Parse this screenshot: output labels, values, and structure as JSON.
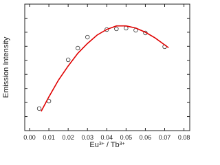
{
  "chart_data": {
    "type": "scatter",
    "ylabel": "Emission Intensity",
    "xlabel_parts": [
      "Eu",
      "3+",
      " / Tb",
      "3+"
    ],
    "xlim": [
      -0.0025,
      0.083
    ],
    "ylim": [
      0,
      9
    ],
    "xticks": [
      {
        "value": 0,
        "label": "0.00"
      },
      {
        "value": 0.01,
        "label": "0.01"
      },
      {
        "value": 0.02,
        "label": "0.02"
      },
      {
        "value": 0.03,
        "label": "0.03"
      },
      {
        "value": 0.04,
        "label": "0.04"
      },
      {
        "value": 0.05,
        "label": "0.05"
      },
      {
        "value": 0.06,
        "label": "0.06"
      },
      {
        "value": 0.07,
        "label": "0.07"
      },
      {
        "value": 0.08,
        "label": "0.08"
      }
    ],
    "yticks": [
      1,
      2,
      3,
      4,
      5,
      6,
      7,
      8
    ],
    "series": [
      {
        "color": "#333333",
        "x": [
          0.005,
          0.01,
          0.02,
          0.025,
          0.03,
          0.04,
          0.045,
          0.05,
          0.055,
          0.06,
          0.07
        ],
        "values": [
          1.57,
          2.1,
          5.04,
          5.87,
          6.65,
          7.19,
          7.24,
          7.29,
          7.14,
          6.95,
          5.97
        ]
      },
      {
        "color": "#e00000",
        "line": true,
        "x": [
          0.006,
          0.01,
          0.015,
          0.02,
          0.025,
          0.03,
          0.035,
          0.04,
          0.045,
          0.05,
          0.055,
          0.06,
          0.065,
          0.07,
          0.072
        ],
        "values": [
          1.37,
          2.4,
          3.6,
          4.6,
          5.5,
          6.2,
          6.8,
          7.2,
          7.45,
          7.45,
          7.3,
          7.0,
          6.6,
          6.1,
          5.9
        ]
      }
    ]
  }
}
